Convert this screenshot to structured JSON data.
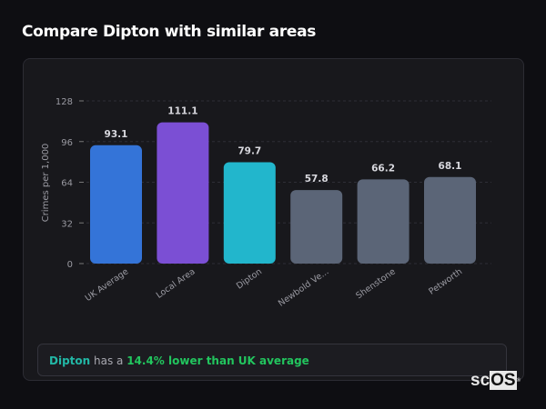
{
  "title": "Compare Dipton with similar areas",
  "chart_data": {
    "type": "bar",
    "title": "",
    "xlabel": "",
    "ylabel": "Crimes per 1,000",
    "ylim": [
      0,
      128
    ],
    "yticks": [
      0,
      32,
      64,
      96,
      128
    ],
    "grid": true,
    "categories": [
      "UK Average",
      "Local Area",
      "Dipton",
      "Newbold Ve...",
      "Shenstone",
      "Petworth"
    ],
    "values": [
      93.1,
      111.1,
      79.7,
      57.8,
      66.2,
      68.1
    ],
    "value_labels": [
      "93.1",
      "111.1",
      "79.7",
      "57.8",
      "66.2",
      "68.1"
    ],
    "colors": [
      "#3474d8",
      "#7b4fd4",
      "#22b6cc",
      "#5b6577",
      "#5b6577",
      "#5b6577"
    ]
  },
  "summary": {
    "place": "Dipton",
    "middle": " has a ",
    "highlight": "14.4% lower than UK average"
  },
  "logo": {
    "text_sc": "sc",
    "text_os": "OS",
    "mark": "®"
  }
}
